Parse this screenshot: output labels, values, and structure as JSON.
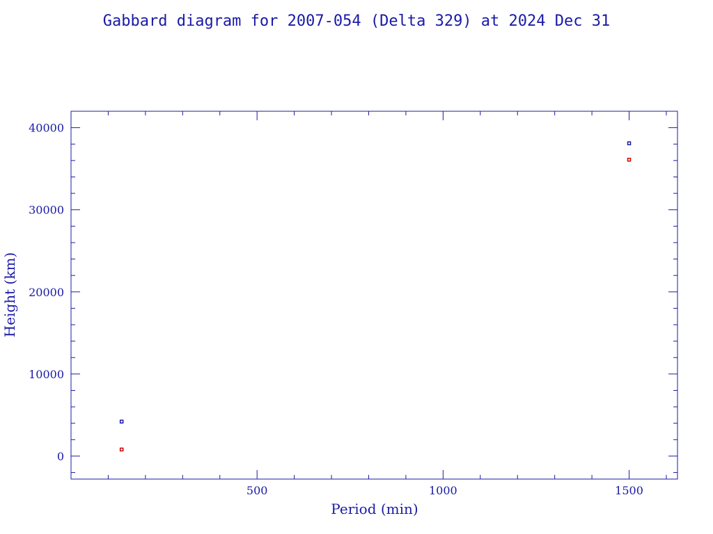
{
  "chart_data": {
    "type": "scatter",
    "title": "Gabbard diagram for 2007-054 (Delta 329) at 2024 Dec 31",
    "xlabel": "Period (min)",
    "ylabel": "Height (km)",
    "xlim": [
      0,
      1630
    ],
    "ylim": [
      -2800,
      42000
    ],
    "x_ticks": [
      500,
      1000,
      1500
    ],
    "x_tick_labels": [
      "500",
      "1000",
      "1500"
    ],
    "y_ticks": [
      0,
      10000,
      20000,
      30000,
      40000
    ],
    "y_tick_labels": [
      "0",
      "10000",
      "20000",
      "30000",
      "40000"
    ],
    "x_minor_step": 100,
    "y_minor_step": 2000,
    "grid": false,
    "axis_color": "#1a1aa6",
    "series": [
      {
        "color": "#1a1aa6",
        "points": [
          {
            "x": 136,
            "y": 4200
          },
          {
            "x": 1500,
            "y": 38100
          }
        ]
      },
      {
        "color": "#cc0000",
        "points": [
          {
            "x": 136,
            "y": 800
          },
          {
            "x": 1500,
            "y": 36100
          }
        ]
      }
    ]
  }
}
